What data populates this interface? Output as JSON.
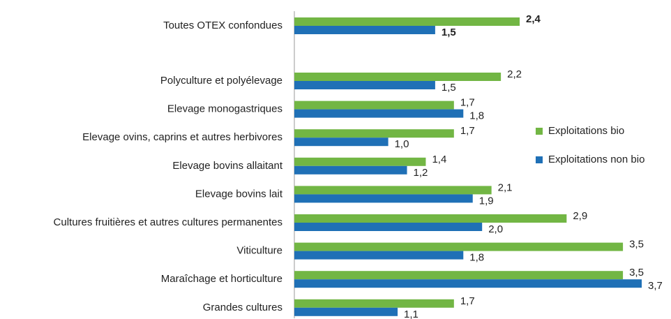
{
  "chart_data": {
    "type": "bar",
    "orientation": "horizontal",
    "categories": [
      "Toutes OTEX confondues",
      "Polyculture et polyélevage",
      "Elevage monogastriques",
      "Elevage ovins, caprins et autres herbivores",
      "Elevage bovins allaitant",
      "Elevage bovins lait",
      "Cultures fruitières et autres cultures permanentes",
      "Viticulture",
      "Maraîchage et horticulture",
      "Grandes cultures"
    ],
    "series": [
      {
        "name": "Exploitations bio",
        "color": "#72b644",
        "values": [
          2.4,
          2.2,
          1.7,
          1.7,
          1.4,
          2.1,
          2.9,
          3.5,
          3.5,
          1.7
        ],
        "value_labels": [
          "2,4",
          "2,2",
          "1,7",
          "1,7",
          "1,4",
          "2,1",
          "2,9",
          "3,5",
          "3,5",
          "1,7"
        ]
      },
      {
        "name": "Exploitations non bio",
        "color": "#1f70b6",
        "values": [
          1.5,
          1.5,
          1.8,
          1.0,
          1.2,
          1.9,
          2.0,
          1.8,
          3.7,
          1.1
        ],
        "value_labels": [
          "1,5",
          "1,5",
          "1,8",
          "1,0",
          "1,2",
          "1,9",
          "2,0",
          "1,8",
          "3,7",
          "1,1"
        ]
      }
    ],
    "legend": "right"
  }
}
